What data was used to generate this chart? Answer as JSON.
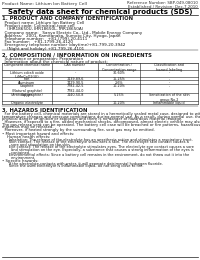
{
  "header_left": "Product Name: Lithium Ion Battery Cell",
  "header_right_line1": "Reference Number: SBP-049-08010",
  "header_right_line2": "Established / Revision: Dec.7.2010",
  "title": "Safety data sheet for chemical products (SDS)",
  "section1_title": "1. PRODUCT AND COMPANY IDENTIFICATION",
  "section1_lines": [
    "  Product name: Lithium Ion Battery Cell",
    "  Product code: Cylindrical-type cell",
    "    (IHR18650U, IHR18650L, IHR18650A)",
    "  Company name:   Sanyo Electric Co., Ltd., Mobile Energy Company",
    "  Address:   2001, Kamitanaka, Sumoto City, Hyogo, Japan",
    "  Telephone number:   +81-(799)-20-4111",
    "  Fax number:   +81-1799-26-4120",
    "  Emergency telephone number (daytime)+81-799-20-3942",
    "    (Night and holiday) +81-799-26-4101"
  ],
  "section2_title": "2. COMPOSITION / INFORMATION ON INGREDIENTS",
  "section2_intro": "  Substance or preparation: Preparation",
  "section2_sub": "  Information about the chemical nature of product:",
  "col_labels": [
    "Component chemical name",
    "CAS number",
    "Concentration /\nConcentration range",
    "Classification and\nhazard labeling"
  ],
  "table_rows": [
    [
      "Lithium cobalt oxide\n(LiMnCoO2(4))",
      "-",
      "30-60%",
      "-"
    ],
    [
      "Iron",
      "7439-89-6",
      "15-25%",
      "-"
    ],
    [
      "Aluminum",
      "7429-90-5",
      "2-6%",
      "-"
    ],
    [
      "Graphite\n(Natural graphite)\n(Artificial graphite)",
      "7782-42-5\n7782-44-0",
      "10-20%",
      "-"
    ],
    [
      "Copper",
      "7440-50-8",
      "5-15%",
      "Sensitization of the skin\ngroup No.2"
    ],
    [
      "Organic electrolyte",
      "-",
      "10-20%",
      "Inflammable liquid"
    ]
  ],
  "section3_title": "3. HAZARDS IDENTIFICATION",
  "section3_para": [
    "  For the battery cell, chemical materials are stored in a hermetically sealed metal case, designed to withstand",
    "temperature changes and pressure combinations during normal use. As a result, during normal use, there is no",
    "physical danger of ignition or explosion and there is no danger of hazardous material leakage.",
    "  However, if exposed to a fire, added mechanical shocks, decomposed, almost electric vehicle may also use.",
    "The gas release vent can be operated. The battery cell case will be breached or fire patterns, hazardous",
    "materials may be released.",
    "  Moreover, if heated strongly by the surrounding fire, soot gas may be emitted."
  ],
  "bullet1": "Most important hazard and effects:",
  "human_health": "    Human health effects:",
  "human_lines": [
    "      Inhalation: The release of the electrolyte has an anesthesia action and stimulates a respiratory tract.",
    "      Skin contact: The release of the electrolyte stimulates a skin. The electrolyte skin contact causes a",
    "        sore and stimulation on the skin.",
    "      Eye contact: The release of the electrolyte stimulates eyes. The electrolyte eye contact causes a sore",
    "        and stimulation on the eye. Especially, a substance that causes a strong inflammation of the eyes is",
    "        contained.",
    "      Environmental effects: Since a battery cell remains in the environment, do not throw out it into the",
    "        environment."
  ],
  "bullet2": "Specific hazards:",
  "specific_lines": [
    "      If the electrolyte contacts with water, it will generate detrimental hydrogen fluoride.",
    "      Since the used electrolyte is inflammable liquid, do not bring close to fire."
  ],
  "bg_color": "#ffffff",
  "text_color": "#1a1a1a",
  "gray_color": "#555555"
}
